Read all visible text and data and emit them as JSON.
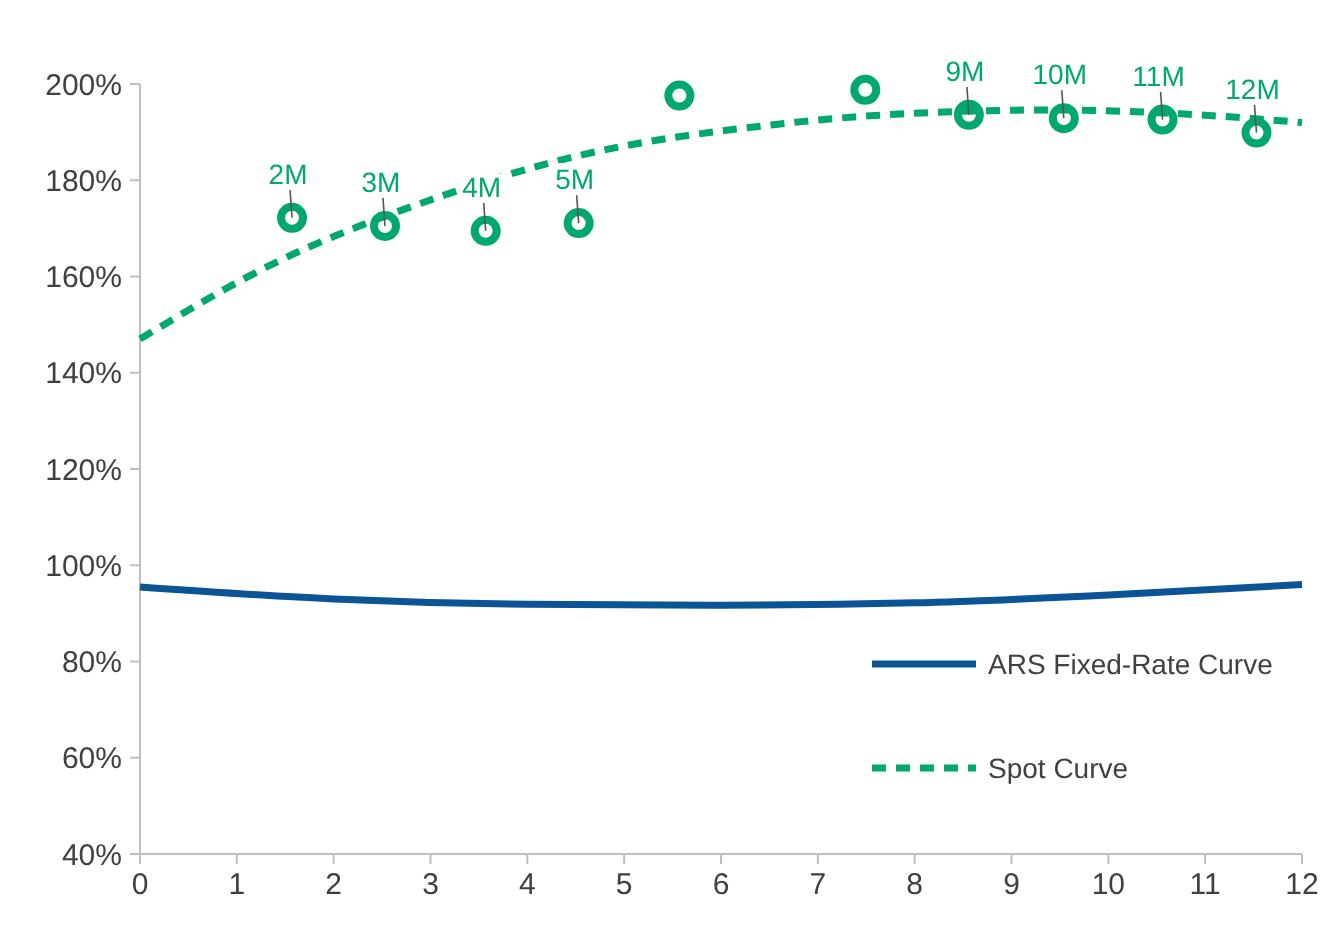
{
  "chart_data": {
    "type": "line",
    "xlim": [
      0,
      12
    ],
    "xticks": [
      0,
      1,
      2,
      3,
      4,
      5,
      6,
      7,
      8,
      9,
      10,
      11,
      12
    ],
    "ylim": [
      40,
      200
    ],
    "yticks": [
      {
        "value": 40,
        "label": "40%"
      },
      {
        "value": 60,
        "label": "60%"
      },
      {
        "value": 80,
        "label": "80%"
      },
      {
        "value": 100,
        "label": "100%"
      },
      {
        "value": 120,
        "label": "120%"
      },
      {
        "value": 140,
        "label": "140%"
      },
      {
        "value": 160,
        "label": "160%"
      },
      {
        "value": 180,
        "label": "180%"
      },
      {
        "value": 200,
        "label": "200%"
      }
    ],
    "grid": false,
    "legend": "bottom right",
    "series": [
      {
        "name": "ARS Fixed-Rate Curve",
        "color": "#0b5495",
        "line_style": "solid",
        "x": [
          0,
          2,
          4,
          6,
          8,
          10,
          12
        ],
        "values": [
          95.5,
          93.0,
          91.9,
          91.7,
          92.2,
          93.8,
          96.0
        ]
      },
      {
        "name": "Spot Curve",
        "color": "#00a870",
        "line_style": "dashed",
        "x": [
          0,
          1.39,
          2.97,
          4.55,
          6.52,
          7.7,
          9.4,
          10.75,
          12
        ],
        "values": [
          147,
          162.8,
          175.7,
          185.2,
          191.5,
          193.6,
          194.6,
          193.8,
          192
        ]
      },
      {
        "type": "scatter",
        "color": "#00a870",
        "marker": "circle",
        "x": [
          1.57,
          2.53,
          3.57,
          4.53,
          5.57,
          7.49,
          8.56,
          9.54,
          10.56,
          11.53
        ],
        "values": [
          172.2,
          170.5,
          169.5,
          171.1,
          197.6,
          198.8,
          193.6,
          192.9,
          192.6,
          189.9
        ]
      }
    ],
    "annotations": [
      {
        "text": "2M",
        "x": 1.57,
        "y": 172.2
      },
      {
        "text": "3M",
        "x": 2.53,
        "y": 170.5
      },
      {
        "text": "4M",
        "x": 3.57,
        "y": 169.5
      },
      {
        "text": "5M",
        "x": 4.53,
        "y": 171.1
      },
      {
        "text": "9M",
        "x": 8.56,
        "y": 193.6
      },
      {
        "text": "10M",
        "x": 9.54,
        "y": 192.9
      },
      {
        "text": "11M",
        "x": 10.56,
        "y": 192.6
      },
      {
        "text": "12M",
        "x": 11.53,
        "y": 189.9
      }
    ]
  }
}
